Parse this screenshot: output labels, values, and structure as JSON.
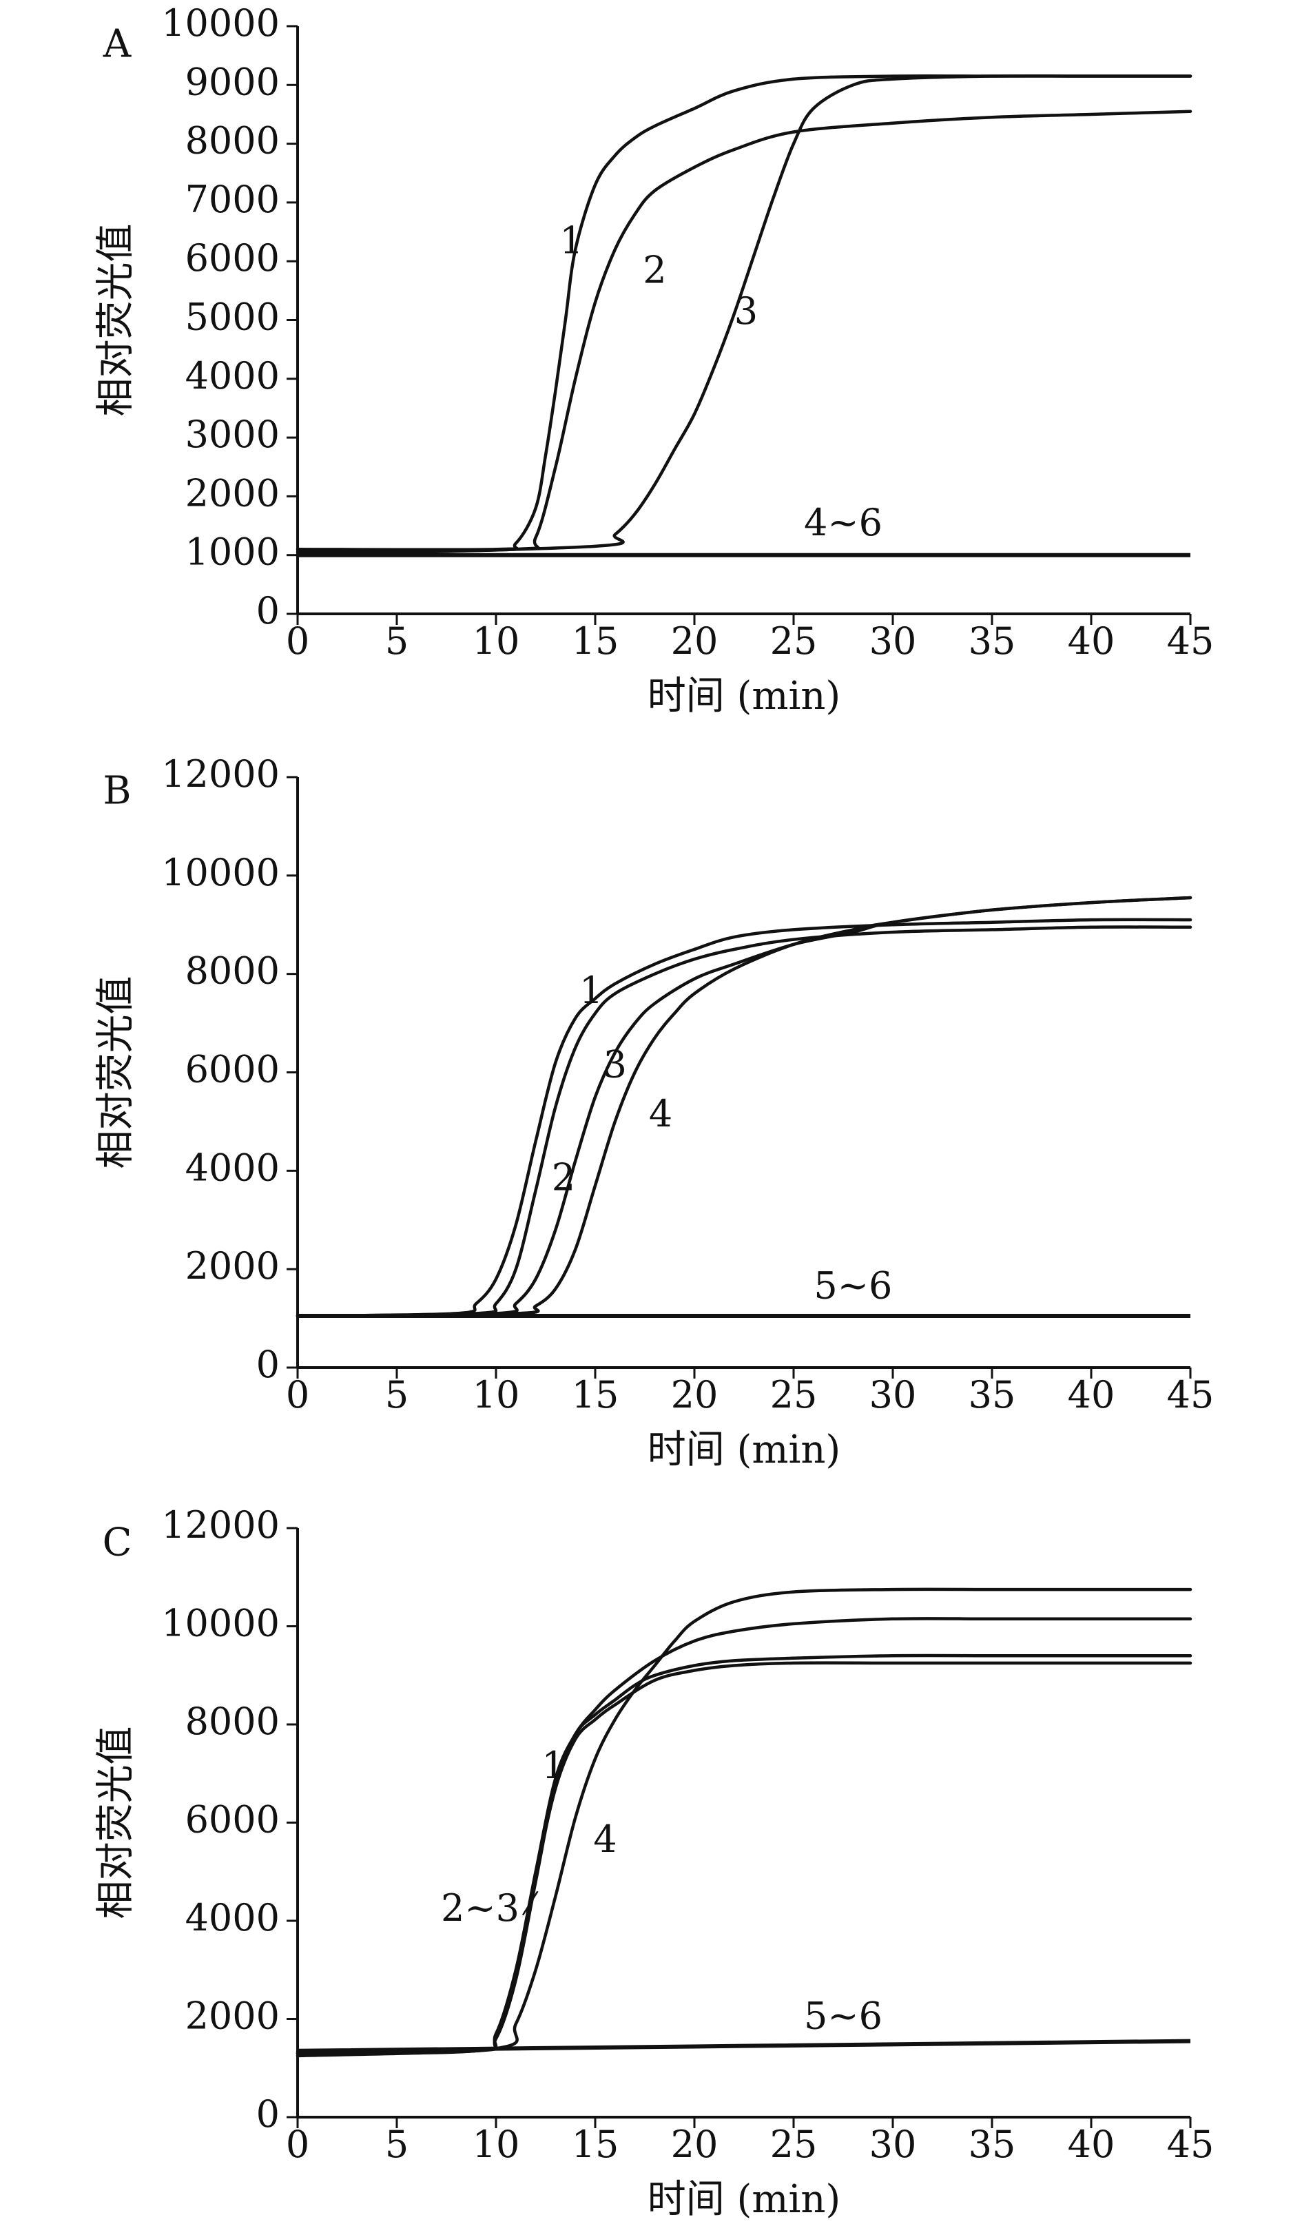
{
  "chart_data": [
    {
      "type": "line",
      "panel": "A",
      "xlabel": "时间 (min)",
      "ylabel": "相对荧光值",
      "xlim": [
        0,
        45
      ],
      "ylim": [
        0,
        10000
      ],
      "xticks": [
        0,
        5,
        10,
        15,
        20,
        25,
        30,
        35,
        40,
        45
      ],
      "yticks": [
        0,
        1000,
        2000,
        3000,
        4000,
        5000,
        6000,
        7000,
        8000,
        9000,
        10000
      ],
      "series": [
        {
          "name": "1",
          "x": [
            0,
            10,
            11,
            12,
            12.5,
            13,
            13.5,
            14,
            15,
            16,
            17,
            18,
            20,
            22,
            25,
            30,
            35,
            40,
            45
          ],
          "y": [
            1100,
            1100,
            1200,
            1800,
            2700,
            3800,
            5000,
            6200,
            7300,
            7800,
            8100,
            8300,
            8600,
            8900,
            9100,
            9150,
            9150,
            9150,
            9150
          ]
        },
        {
          "name": "2",
          "x": [
            0,
            11,
            12,
            13,
            14,
            15,
            16,
            17,
            18,
            20,
            22,
            25,
            30,
            35,
            40,
            45
          ],
          "y": [
            1050,
            1100,
            1300,
            2500,
            4000,
            5300,
            6200,
            6800,
            7200,
            7600,
            7900,
            8200,
            8350,
            8450,
            8500,
            8550
          ]
        },
        {
          "name": "3",
          "x": [
            0,
            15,
            16,
            17,
            18,
            19,
            20,
            21,
            22,
            23,
            24,
            25,
            26,
            28,
            30,
            35,
            40,
            45
          ],
          "y": [
            1000,
            1150,
            1350,
            1700,
            2200,
            2800,
            3400,
            4200,
            5100,
            6100,
            7100,
            8000,
            8600,
            9000,
            9100,
            9150,
            9150,
            9150
          ]
        },
        {
          "name": "4~6",
          "x": [
            0,
            45
          ],
          "y": [
            1000,
            1000
          ]
        }
      ],
      "curve_labels": [
        {
          "text": "1",
          "x": 13.8,
          "y": 6300
        },
        {
          "text": "2",
          "x": 18.0,
          "y": 5800
        },
        {
          "text": "3",
          "x": 22.6,
          "y": 5100
        },
        {
          "text": "4~6",
          "x": 27.5,
          "y": 1500
        }
      ]
    },
    {
      "type": "line",
      "panel": "B",
      "xlabel": "时间 (min)",
      "ylabel": "相对荧光值",
      "xlim": [
        0,
        45
      ],
      "ylim": [
        0,
        12000
      ],
      "xticks": [
        0,
        5,
        10,
        15,
        20,
        25,
        30,
        35,
        40,
        45
      ],
      "yticks": [
        0,
        2000,
        4000,
        6000,
        8000,
        10000,
        12000
      ],
      "series": [
        {
          "name": "1",
          "x": [
            0,
            8,
            9,
            10,
            11,
            12,
            13,
            14,
            15,
            16,
            18,
            20,
            22,
            25,
            30,
            35,
            40,
            45
          ],
          "y": [
            1050,
            1100,
            1300,
            1800,
            2900,
            4600,
            6200,
            7100,
            7500,
            7800,
            8200,
            8500,
            8750,
            8900,
            9000,
            9050,
            9100,
            9100
          ]
        },
        {
          "name": "2",
          "x": [
            0,
            9,
            10,
            11,
            12,
            13,
            14,
            15,
            16,
            18,
            20,
            22,
            25,
            30,
            35,
            40,
            45
          ],
          "y": [
            1050,
            1100,
            1300,
            2000,
            3600,
            5300,
            6500,
            7200,
            7600,
            8000,
            8300,
            8500,
            8700,
            8850,
            8900,
            8950,
            8950
          ]
        },
        {
          "name": "3",
          "x": [
            0,
            10,
            11,
            12,
            13,
            14,
            15,
            16,
            17,
            18,
            20,
            22,
            25,
            28,
            30,
            35,
            40,
            45
          ],
          "y": [
            1050,
            1100,
            1300,
            1800,
            2800,
            4200,
            5500,
            6400,
            7000,
            7400,
            7900,
            8200,
            8600,
            8850,
            9050,
            9300,
            9450,
            9550
          ]
        },
        {
          "name": "4",
          "x": [
            0,
            11,
            12,
            13,
            14,
            15,
            16,
            17,
            18,
            19,
            20,
            22,
            25,
            28,
            30,
            35,
            40,
            45
          ],
          "y": [
            1050,
            1100,
            1250,
            1600,
            2400,
            3700,
            5000,
            6000,
            6700,
            7200,
            7600,
            8100,
            8600,
            8900,
            9050,
            9300,
            9450,
            9550
          ]
        },
        {
          "name": "5~6",
          "x": [
            0,
            45
          ],
          "y": [
            1050,
            1050
          ]
        }
      ],
      "curve_labels": [
        {
          "text": "1",
          "x": 14.8,
          "y": 7600
        },
        {
          "text": "3",
          "x": 16.0,
          "y": 6100
        },
        {
          "text": "4",
          "x": 18.3,
          "y": 5100
        },
        {
          "text": "2",
          "x": 13.4,
          "y": 3800
        },
        {
          "text": "5~6",
          "x": 28.0,
          "y": 1600
        }
      ]
    },
    {
      "type": "line",
      "panel": "C",
      "xlabel": "时间 (min)",
      "ylabel": "相对荧光值",
      "xlim": [
        0,
        45
      ],
      "ylim": [
        0,
        12000
      ],
      "xticks": [
        0,
        5,
        10,
        15,
        20,
        25,
        30,
        35,
        40,
        45
      ],
      "yticks": [
        0,
        2000,
        4000,
        6000,
        8000,
        10000,
        12000
      ],
      "series": [
        {
          "name": "1",
          "x": [
            0,
            9,
            10,
            11,
            12,
            13,
            14,
            15,
            16,
            17,
            18,
            20,
            22,
            25,
            30,
            35,
            40,
            45
          ],
          "y": [
            1300,
            1350,
            1600,
            2800,
            4800,
            6800,
            7800,
            8200,
            8500,
            8800,
            9000,
            9200,
            9300,
            9350,
            9400,
            9400,
            9400,
            9400
          ]
        },
        {
          "name": "2",
          "x": [
            0,
            9,
            10,
            11,
            12,
            13,
            14,
            15,
            16,
            18,
            20,
            22,
            25,
            30,
            35,
            40,
            45
          ],
          "y": [
            1300,
            1350,
            1700,
            3000,
            5000,
            6900,
            7800,
            8300,
            8700,
            9300,
            9700,
            9900,
            10050,
            10150,
            10150,
            10150,
            10150
          ]
        },
        {
          "name": "3",
          "x": [
            0,
            9,
            10,
            11,
            12,
            13,
            14,
            15,
            16,
            18,
            20,
            22,
            25,
            30,
            35,
            40,
            45
          ],
          "y": [
            1300,
            1350,
            1650,
            2900,
            4900,
            6700,
            7700,
            8100,
            8400,
            8900,
            9100,
            9200,
            9250,
            9250,
            9250,
            9250,
            9250
          ]
        },
        {
          "name": "4",
          "x": [
            0,
            10,
            11,
            12,
            13,
            14,
            15,
            16,
            17,
            18,
            19,
            20,
            22,
            25,
            30,
            35,
            40,
            45
          ],
          "y": [
            1250,
            1400,
            1900,
            3000,
            4500,
            6100,
            7300,
            8100,
            8700,
            9200,
            9700,
            10100,
            10500,
            10700,
            10750,
            10750,
            10750,
            10750
          ]
        },
        {
          "name": "5~6",
          "x": [
            0,
            45
          ],
          "y": [
            1350,
            1550
          ]
        }
      ],
      "curve_labels": [
        {
          "text": "1",
          "x": 12.9,
          "y": 7100
        },
        {
          "text": "4",
          "x": 15.5,
          "y": 5600
        },
        {
          "text": "2~3",
          "x": 9.2,
          "y": 4200
        },
        {
          "text": "5~6",
          "x": 27.5,
          "y": 2000
        }
      ]
    }
  ]
}
